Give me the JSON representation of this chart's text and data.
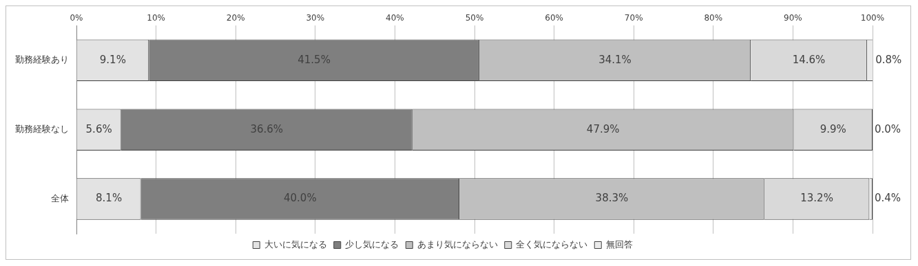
{
  "chart_data": {
    "type": "bar",
    "orientation": "horizontal",
    "stacked": true,
    "categories": [
      "勤務経験あり",
      "勤務経験なし",
      "全体"
    ],
    "series": [
      {
        "name": "大いに気になる",
        "color": "#e3e3e3",
        "values": [
          9.1,
          5.6,
          8.1
        ],
        "value_labels": [
          "9.1%",
          "5.6%",
          "8.1%"
        ]
      },
      {
        "name": "少し気になる",
        "color": "#7f7f7f",
        "values": [
          41.5,
          36.6,
          40.0
        ],
        "value_labels": [
          "41.5%",
          "36.6%",
          "40.0%"
        ]
      },
      {
        "name": "あまり気にならない",
        "color": "#bfbfbf",
        "values": [
          34.1,
          47.9,
          38.3
        ],
        "value_labels": [
          "34.1%",
          "47.9%",
          "38.3%"
        ]
      },
      {
        "name": "全く気にならない",
        "color": "#d9d9d9",
        "values": [
          14.6,
          9.9,
          13.2
        ],
        "value_labels": [
          "14.6%",
          "9.9%",
          "13.2%"
        ]
      },
      {
        "name": "無回答",
        "color": "#ebebeb",
        "values": [
          0.8,
          0.0,
          0.4
        ],
        "value_labels": [
          "0.8%",
          "0.0%",
          "0.4%"
        ]
      }
    ],
    "xlim": [
      0,
      100
    ],
    "xticks": [
      {
        "value": 0,
        "label": "0%"
      },
      {
        "value": 10,
        "label": "10%"
      },
      {
        "value": 20,
        "label": "20%"
      },
      {
        "value": 30,
        "label": "30%"
      },
      {
        "value": 40,
        "label": "40%"
      },
      {
        "value": 50,
        "label": "50%"
      },
      {
        "value": 60,
        "label": "60%"
      },
      {
        "value": 70,
        "label": "70%"
      },
      {
        "value": 80,
        "label": "80%"
      },
      {
        "value": 90,
        "label": "90%"
      },
      {
        "value": 100,
        "label": "100%"
      }
    ],
    "grid": "x",
    "legend": "bottom"
  }
}
